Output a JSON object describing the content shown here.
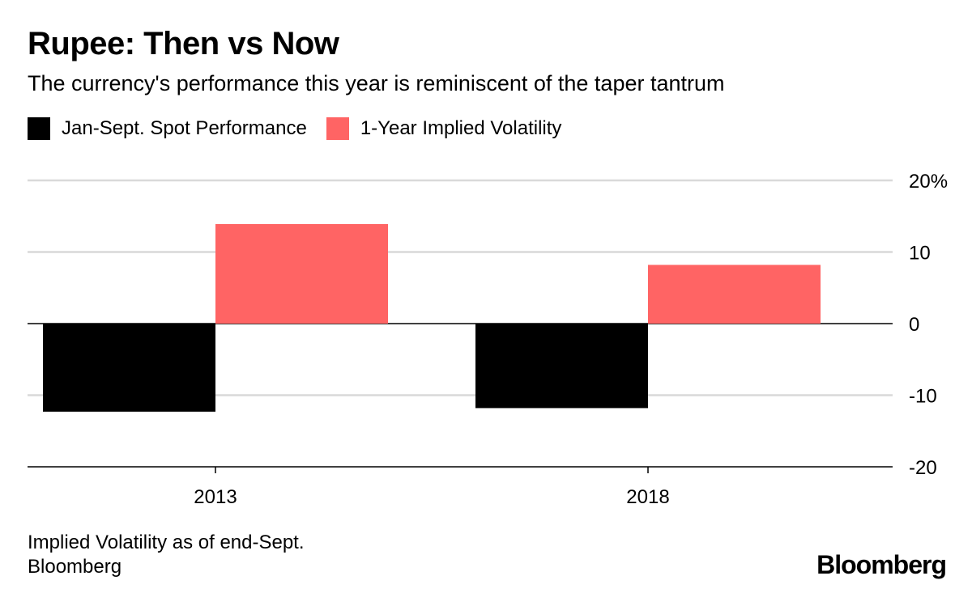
{
  "header": {
    "title": "Rupee: Then vs Now",
    "subtitle": "The currency's performance this year is reminiscent of the taper tantrum"
  },
  "legend": [
    {
      "label": "Jan-Sept. Spot Performance",
      "color": "#000000"
    },
    {
      "label": "1-Year Implied Volatility",
      "color": "#ff6464"
    }
  ],
  "footer": {
    "note": "Implied Volatility as of end-Sept.",
    "source": "Bloomberg",
    "logo": "Bloomberg"
  },
  "chart_data": {
    "type": "bar",
    "categories": [
      "2013",
      "2018"
    ],
    "series": [
      {
        "name": "Jan-Sept. Spot Performance",
        "color": "#000000",
        "values": [
          -12.3,
          -11.8
        ]
      },
      {
        "name": "1-Year Implied Volatility",
        "color": "#ff6464",
        "values": [
          13.9,
          8.2
        ]
      }
    ],
    "ylim": [
      -20,
      20
    ],
    "yticks": [
      20,
      10,
      0,
      -10,
      -20
    ],
    "ytick_labels": [
      "20%",
      "10",
      "0",
      "-10",
      "-20"
    ],
    "y_axis_position": "right",
    "grid": true,
    "legend_position": "top-left"
  }
}
